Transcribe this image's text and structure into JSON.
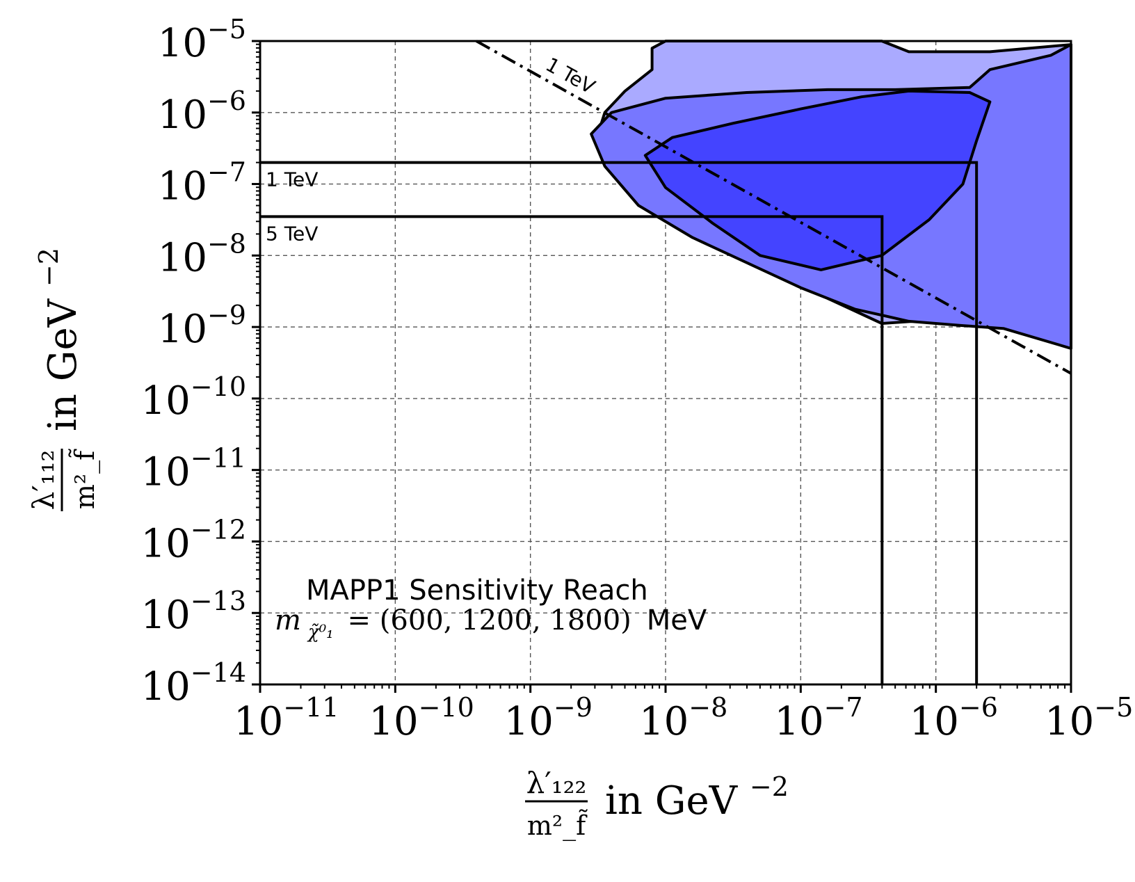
{
  "chart_data": {
    "type": "area",
    "title": "",
    "annotation_title": "MAPP1 Sensitivity Reach",
    "annotation_mass_symbol": "m",
    "annotation_mass_subscript": "χ̃⁰₁",
    "annotation_mass_values": "= (600, 1200, 1800)",
    "annotation_mass_unit": "MeV",
    "xlabel": {
      "numerator": "λ′₁₂₂",
      "denominator": "m²_f̃",
      "suffix": "in GeV",
      "suffix_exp": "−2"
    },
    "ylabel": {
      "numerator": "λ′₁₁₂",
      "denominator": "m²_f̃",
      "suffix": "in GeV",
      "suffix_exp": "−2"
    },
    "xscale": "log",
    "yscale": "log",
    "xlim": [
      1e-11,
      1e-05
    ],
    "ylim": [
      1e-14,
      1e-05
    ],
    "grid": true,
    "x_ticks": [
      {
        "base": "10",
        "exp": "−11"
      },
      {
        "base": "10",
        "exp": "−10"
      },
      {
        "base": "10",
        "exp": "−9"
      },
      {
        "base": "10",
        "exp": "−8"
      },
      {
        "base": "10",
        "exp": "−7"
      },
      {
        "base": "10",
        "exp": "−6"
      },
      {
        "base": "10",
        "exp": "−5"
      }
    ],
    "y_ticks": [
      {
        "base": "10",
        "exp": "−14"
      },
      {
        "base": "10",
        "exp": "−13"
      },
      {
        "base": "10",
        "exp": "−12"
      },
      {
        "base": "10",
        "exp": "−11"
      },
      {
        "base": "10",
        "exp": "−10"
      },
      {
        "base": "10",
        "exp": "−9"
      },
      {
        "base": "10",
        "exp": "−8"
      },
      {
        "base": "10",
        "exp": "−7"
      },
      {
        "base": "10",
        "exp": "−6"
      },
      {
        "base": "10",
        "exp": "−5"
      }
    ],
    "colors": {
      "region_600": "#aaaaff",
      "region_1200": "#7777ff",
      "region_1800": "#4444ff",
      "lines": "#000000",
      "grid": "#555555"
    },
    "regions": [
      {
        "mass": "600 MeV",
        "fill": "#aaaaff",
        "log10_boundary": [
          [
            -8.1,
            -5.1
          ],
          [
            -8.0,
            -5.0
          ],
          [
            -6.4,
            -5.0
          ],
          [
            -6.2,
            -5.15
          ],
          [
            -5.6,
            -5.15
          ],
          [
            -5.0,
            -5.05
          ],
          [
            -5.0,
            -7.45
          ],
          [
            -5.2,
            -7.9
          ],
          [
            -5.35,
            -8.35
          ],
          [
            -5.6,
            -8.7
          ],
          [
            -6.0,
            -8.9
          ],
          [
            -6.4,
            -8.95
          ],
          [
            -6.8,
            -8.6
          ],
          [
            -7.2,
            -8.2
          ],
          [
            -7.6,
            -7.75
          ],
          [
            -8.0,
            -7.1
          ],
          [
            -8.3,
            -6.6
          ],
          [
            -8.5,
            -6.3
          ],
          [
            -8.45,
            -6.0
          ],
          [
            -8.3,
            -5.7
          ],
          [
            -8.1,
            -5.4
          ],
          [
            -8.1,
            -5.1
          ]
        ]
      },
      {
        "mass": "1200 MeV",
        "fill": "#7777ff",
        "log10_boundary": [
          [
            -8.4,
            -6.0
          ],
          [
            -8.0,
            -5.8
          ],
          [
            -7.4,
            -5.72
          ],
          [
            -6.8,
            -5.68
          ],
          [
            -6.3,
            -5.68
          ],
          [
            -5.75,
            -5.65
          ],
          [
            -5.6,
            -5.4
          ],
          [
            -5.15,
            -5.2
          ],
          [
            -5.0,
            -5.05
          ],
          [
            -5.0,
            -9.3
          ],
          [
            -5.5,
            -9.02
          ],
          [
            -5.8,
            -8.98
          ],
          [
            -6.2,
            -8.92
          ],
          [
            -6.6,
            -8.75
          ],
          [
            -7.0,
            -8.45
          ],
          [
            -7.4,
            -8.1
          ],
          [
            -7.8,
            -7.75
          ],
          [
            -8.2,
            -7.3
          ],
          [
            -8.45,
            -6.75
          ],
          [
            -8.55,
            -6.3
          ],
          [
            -8.4,
            -6.0
          ]
        ]
      },
      {
        "mass": "1800 MeV",
        "fill": "#4444ff",
        "log10_boundary": [
          [
            -7.95,
            -6.35
          ],
          [
            -7.5,
            -6.15
          ],
          [
            -7.0,
            -5.95
          ],
          [
            -6.55,
            -5.78
          ],
          [
            -6.2,
            -5.7
          ],
          [
            -5.75,
            -5.72
          ],
          [
            -5.6,
            -5.85
          ],
          [
            -5.7,
            -6.4
          ],
          [
            -5.8,
            -7.0
          ],
          [
            -6.05,
            -7.5
          ],
          [
            -6.4,
            -8.0
          ],
          [
            -6.85,
            -8.2
          ],
          [
            -7.3,
            -8.0
          ],
          [
            -7.65,
            -7.55
          ],
          [
            -8.0,
            -7.05
          ],
          [
            -8.15,
            -6.6
          ],
          [
            -7.95,
            -6.35
          ]
        ]
      }
    ],
    "diagonal_line": {
      "label": "1 TeV",
      "log10_points": [
        [
          -9.4,
          -5.0
        ],
        [
          -5.0,
          -9.65
        ]
      ]
    },
    "limit_boxes": [
      {
        "label": "1 TeV",
        "x": 2e-06,
        "y": 2e-07
      },
      {
        "label": "5 TeV",
        "x": 4e-07,
        "y": 3.5e-08
      }
    ]
  }
}
